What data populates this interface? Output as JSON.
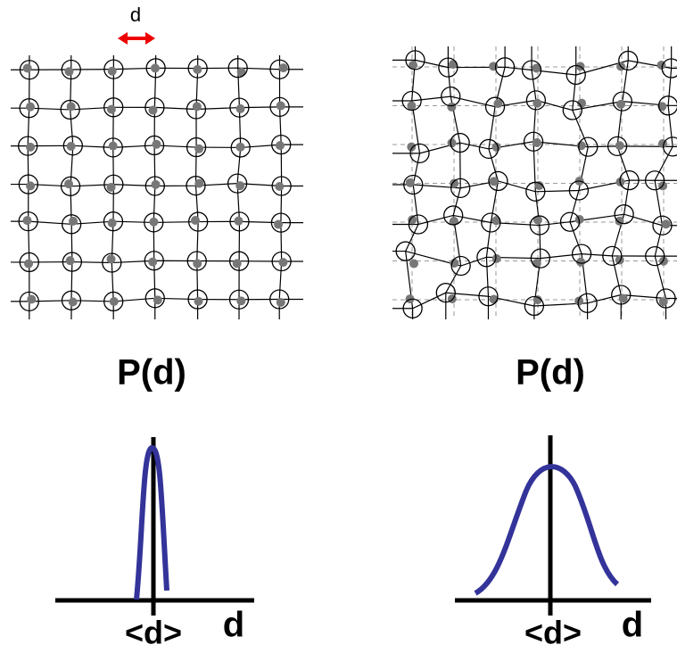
{
  "lattice_label": "d",
  "panels": [
    {
      "title": "P(d)",
      "mean_label": "<d>",
      "axis_label": "d"
    },
    {
      "title": "P(d)",
      "mean_label": "<d>",
      "axis_label": "d"
    }
  ]
}
